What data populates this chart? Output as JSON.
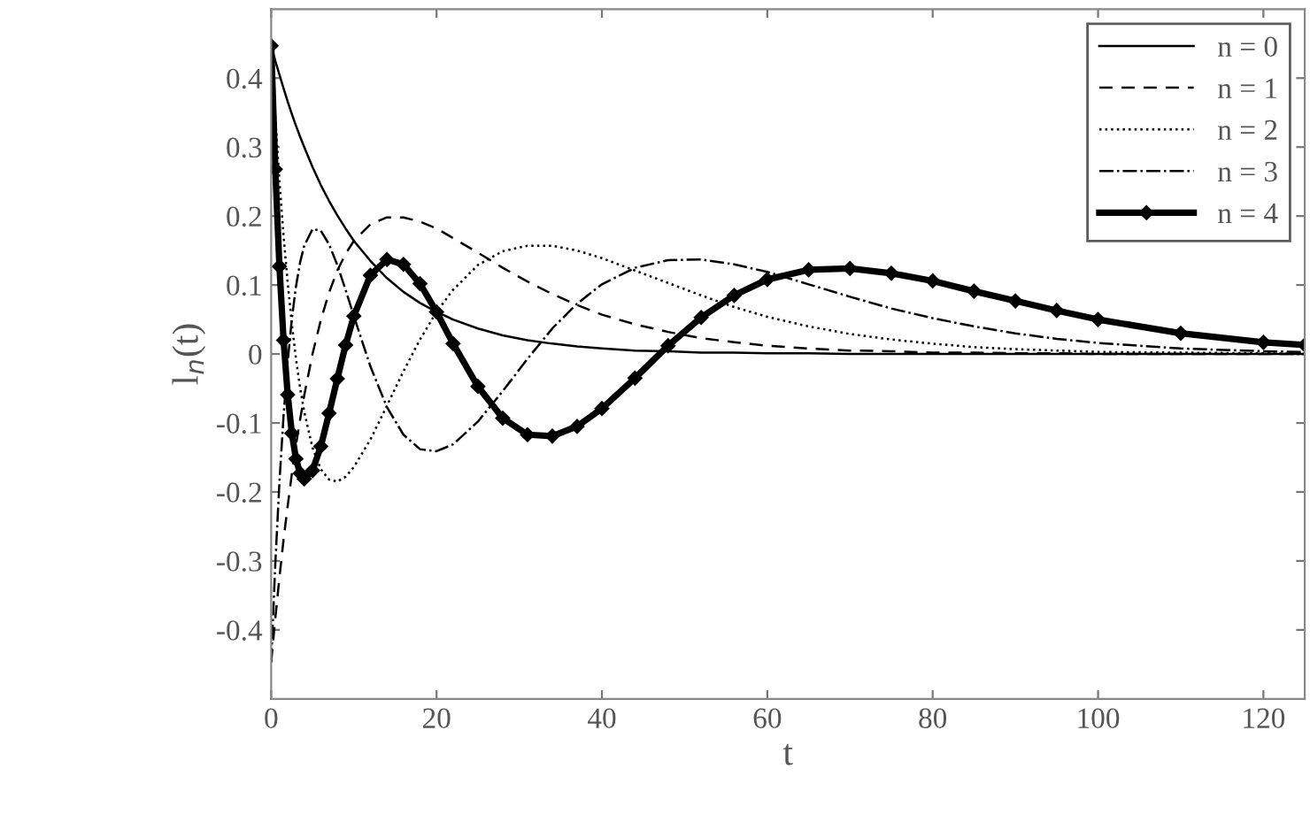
{
  "chart_data": {
    "type": "line",
    "xlabel": "t",
    "ylabel": "l$_{n}$(t)",
    "x": [
      0,
      0.5,
      1,
      1.5,
      2,
      2.5,
      3,
      3.5,
      4,
      5,
      6,
      7,
      8,
      9,
      10,
      12,
      14,
      16,
      18,
      20,
      22,
      25,
      28,
      31,
      34,
      37,
      40,
      44,
      48,
      52,
      56,
      60,
      65,
      70,
      75,
      80,
      85,
      90,
      95,
      100,
      110,
      120,
      125
    ],
    "series": [
      {
        "name": "n = 0",
        "color": "#000000",
        "line_style": "solid",
        "marker": "none",
        "values": [
          0.447,
          0.425,
          0.405,
          0.385,
          0.366,
          0.348,
          0.331,
          0.315,
          0.3,
          0.271,
          0.245,
          0.222,
          0.201,
          0.182,
          0.164,
          0.135,
          0.11,
          0.09,
          0.074,
          0.061,
          0.05,
          0.037,
          0.027,
          0.02,
          0.015,
          0.011,
          0.008,
          0.005,
          0.004,
          0.002,
          0.002,
          0.001,
          0.001,
          0,
          0,
          0,
          0,
          0,
          0,
          0,
          0,
          0,
          0
        ]
      },
      {
        "name": "n = 1",
        "color": "#000000",
        "line_style": "dashed",
        "marker": "none",
        "values": [
          -0.447,
          -0.383,
          -0.324,
          -0.269,
          -0.22,
          -0.174,
          -0.132,
          -0.095,
          -0.06,
          0,
          0.049,
          0.089,
          0.121,
          0.145,
          0.164,
          0.188,
          0.198,
          0.198,
          0.192,
          0.182,
          0.168,
          0.147,
          0.125,
          0.105,
          0.087,
          0.071,
          0.057,
          0.043,
          0.032,
          0.023,
          0.017,
          0.012,
          0.008,
          0.005,
          0.004,
          0.002,
          0.002,
          0.001,
          0.001,
          0,
          0,
          0,
          0
        ]
      },
      {
        "name": "n = 2",
        "color": "#000000",
        "line_style": "dotted",
        "marker": "none",
        "values": [
          0.447,
          0.342,
          0.251,
          0.171,
          0.103,
          0.044,
          -0.007,
          -0.049,
          -0.084,
          -0.136,
          -0.167,
          -0.182,
          -0.185,
          -0.178,
          -0.164,
          -0.124,
          -0.075,
          -0.025,
          0.021,
          0.061,
          0.093,
          0.129,
          0.149,
          0.157,
          0.157,
          0.15,
          0.139,
          0.121,
          0.103,
          0.085,
          0.068,
          0.054,
          0.04,
          0.029,
          0.021,
          0.015,
          0.01,
          0.007,
          0.005,
          0.003,
          0.002,
          0.001,
          0
        ]
      },
      {
        "name": "n = 3",
        "color": "#000000",
        "line_style": "dashdot",
        "marker": "none",
        "values": [
          -0.447,
          -0.304,
          -0.186,
          -0.089,
          -0.011,
          0.051,
          0.098,
          0.133,
          0.157,
          0.181,
          0.179,
          0.159,
          0.129,
          0.093,
          0.055,
          -0.018,
          -0.077,
          -0.117,
          -0.138,
          -0.141,
          -0.131,
          -0.098,
          -0.054,
          -0.007,
          0.037,
          0.073,
          0.101,
          0.125,
          0.136,
          0.137,
          0.13,
          0.119,
          0.101,
          0.083,
          0.066,
          0.052,
          0.04,
          0.03,
          0.022,
          0.016,
          0.008,
          0.004,
          0.003
        ]
      },
      {
        "name": "n = 4",
        "color": "#000000",
        "line_style": "solid",
        "marker": "diamond",
        "values": [
          0.447,
          0.268,
          0.127,
          0.02,
          -0.059,
          -0.115,
          -0.152,
          -0.173,
          -0.181,
          -0.169,
          -0.134,
          -0.086,
          -0.036,
          0.013,
          0.055,
          0.114,
          0.137,
          0.13,
          0.102,
          0.061,
          0.015,
          -0.047,
          -0.093,
          -0.117,
          -0.119,
          -0.105,
          -0.079,
          -0.035,
          0.012,
          0.053,
          0.085,
          0.108,
          0.122,
          0.124,
          0.117,
          0.106,
          0.091,
          0.077,
          0.063,
          0.05,
          0.03,
          0.017,
          0.013
        ]
      }
    ],
    "xlim": [
      0,
      125
    ],
    "ylim": [
      -0.5,
      0.5
    ],
    "xticks": [
      0,
      20,
      40,
      60,
      80,
      100,
      120
    ],
    "yticks": [
      -0.4,
      -0.3,
      -0.2,
      -0.1,
      0,
      0.1,
      0.2,
      0.3,
      0.4
    ],
    "grid": false,
    "legend": "top right"
  }
}
